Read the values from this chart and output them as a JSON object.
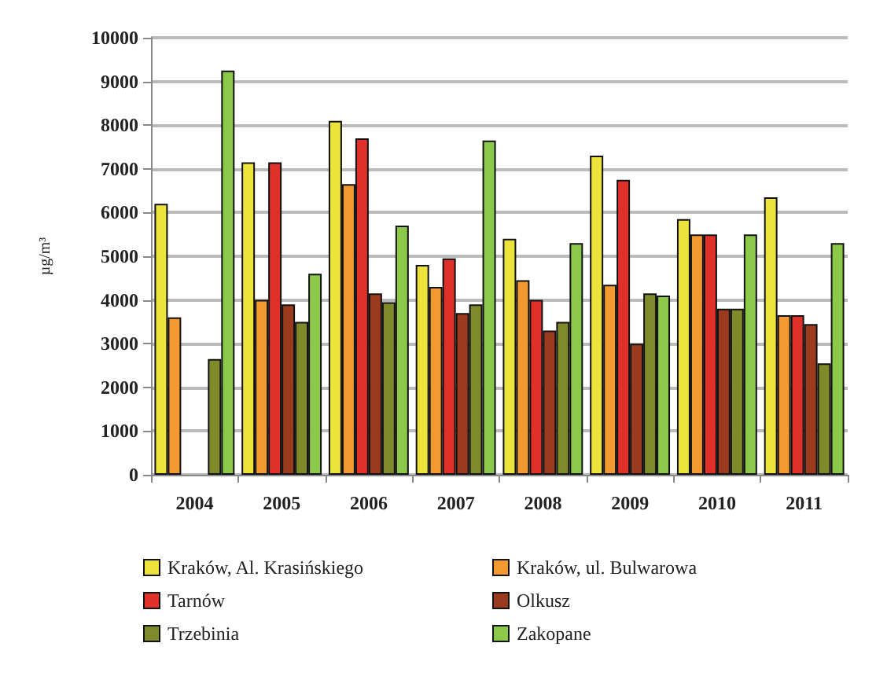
{
  "chart_data": {
    "type": "bar",
    "ylabel": "µg/m³",
    "categories": [
      "2004",
      "2005",
      "2006",
      "2007",
      "2008",
      "2009",
      "2010",
      "2011"
    ],
    "series": [
      {
        "name": "Kraków, Al. Krasińskiego",
        "color": "#ece43c",
        "values": [
          6200,
          7150,
          8100,
          4800,
          5400,
          7300,
          5850,
          6350
        ]
      },
      {
        "name": "Kraków, ul. Bulwarowa",
        "color": "#f29a30",
        "values": [
          3600,
          4000,
          6650,
          4300,
          4450,
          4350,
          5500,
          3650
        ]
      },
      {
        "name": "Tarnów",
        "color": "#e0302a",
        "values": [
          null,
          7150,
          7700,
          4950,
          4000,
          6750,
          5500,
          3650
        ]
      },
      {
        "name": "Olkusz",
        "color": "#9a3a1e",
        "values": [
          null,
          3900,
          4150,
          3700,
          3300,
          3000,
          3800,
          3450
        ]
      },
      {
        "name": "Trzebinia",
        "color": "#7f8a2a",
        "values": [
          2650,
          3500,
          3950,
          3900,
          3500,
          4150,
          3800,
          2550
        ]
      },
      {
        "name": "Zakopane",
        "color": "#8cc84a",
        "values": [
          9250,
          4600,
          5700,
          7650,
          5300,
          4100,
          5500,
          5300
        ]
      }
    ],
    "ylim": [
      0,
      10000
    ],
    "yticks": [
      0,
      1000,
      2000,
      3000,
      4000,
      5000,
      6000,
      7000,
      8000,
      9000,
      10000
    ],
    "grid": "y",
    "legend": "bottom"
  }
}
